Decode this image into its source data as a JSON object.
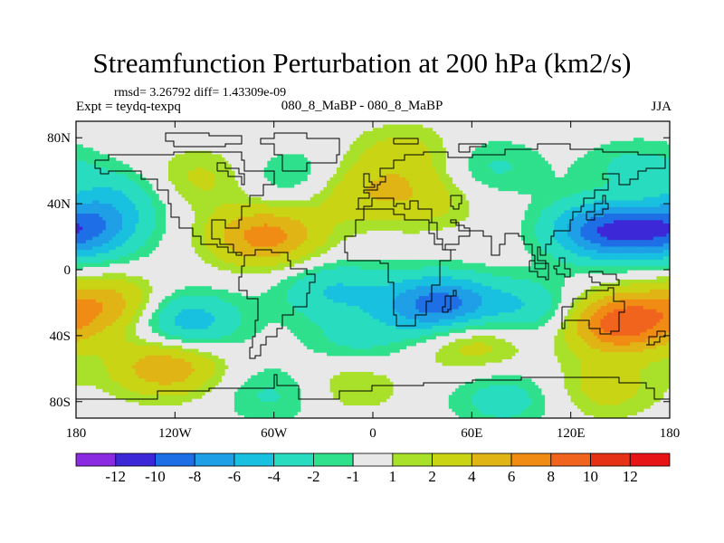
{
  "header": {
    "title": "Streamfunction Perturbation at 200 hPa (km2/s)",
    "stats": "rmsd= 3.26792 diff= 1.43309e-09",
    "left_subtitle": "Expt = teydq-texpq",
    "center_subtitle": "080_8_MaBP - 080_8_MaBP",
    "right_subtitle": "JJA"
  },
  "chart_data": {
    "type": "heatmap",
    "title": "Streamfunction Perturbation at 200 hPa (km2/s)",
    "units": "km2/s",
    "xlim": [
      -180,
      180
    ],
    "ylim": [
      -90,
      90
    ],
    "x_ticks": [
      {
        "value": -180,
        "label": "180"
      },
      {
        "value": -120,
        "label": "120W"
      },
      {
        "value": -60,
        "label": "60W"
      },
      {
        "value": 0,
        "label": "0"
      },
      {
        "value": 60,
        "label": "60E"
      },
      {
        "value": 120,
        "label": "120E"
      },
      {
        "value": 180,
        "label": "180"
      }
    ],
    "y_ticks": [
      {
        "value": 80,
        "label": "80N"
      },
      {
        "value": 40,
        "label": "40N"
      },
      {
        "value": 0,
        "label": "0"
      },
      {
        "value": -40,
        "label": "40S"
      },
      {
        "value": -80,
        "label": "80S"
      }
    ],
    "colorbar": {
      "levels": [
        -12,
        -10,
        -8,
        -6,
        -4,
        -2,
        -1,
        1,
        2,
        4,
        6,
        8,
        10,
        12
      ],
      "level_labels": [
        "-12",
        "-10",
        "-8",
        "-6",
        "-4",
        "-2",
        "-1",
        "1",
        "2",
        "4",
        "6",
        "8",
        "10",
        "12"
      ],
      "colors": [
        "#8a2be2",
        "#3c28d6",
        "#1e6fe6",
        "#1e9fe6",
        "#19c0df",
        "#28dcc0",
        "#2fe08c",
        "#e8e8e8",
        "#a8e02a",
        "#c8d414",
        "#e0b414",
        "#f08c14",
        "#f0641e",
        "#e63214",
        "#e61414"
      ]
    },
    "features": [
      {
        "lon": 150,
        "lat": -32,
        "value": 9.5
      },
      {
        "lon": 170,
        "lat": 42,
        "value": 3.5
      },
      {
        "lon": 20,
        "lat": 70,
        "value": 2.8
      },
      {
        "lon": -125,
        "lat": -58,
        "value": 6.0
      },
      {
        "lon": -160,
        "lat": -22,
        "value": 5.5
      },
      {
        "lon": -65,
        "lat": 20,
        "value": 7.0
      },
      {
        "lon": -15,
        "lat": 48,
        "value": 3.5
      },
      {
        "lon": 30,
        "lat": 43,
        "value": 3.0
      },
      {
        "lon": 60,
        "lat": -42,
        "value": 4.0
      },
      {
        "lon": 140,
        "lat": -72,
        "value": 2.8
      },
      {
        "lon": -15,
        "lat": -68,
        "value": 2.5
      },
      {
        "lon": -105,
        "lat": 55,
        "value": 2.5
      },
      {
        "lon": 140,
        "lat": 24,
        "value": -9.0
      },
      {
        "lon": 178,
        "lat": 28,
        "value": -6.0
      },
      {
        "lon": 40,
        "lat": -22,
        "value": -9.5
      },
      {
        "lon": 95,
        "lat": -24,
        "value": -4.0
      },
      {
        "lon": -25,
        "lat": -12,
        "value": -4.0
      },
      {
        "lon": -115,
        "lat": -32,
        "value": -6.0
      },
      {
        "lon": -160,
        "lat": 44,
        "value": -4.0
      },
      {
        "lon": -170,
        "lat": 20,
        "value": -3.0
      },
      {
        "lon": -45,
        "lat": 55,
        "value": -3.0
      },
      {
        "lon": 160,
        "lat": 60,
        "value": -3.0
      },
      {
        "lon": 70,
        "lat": 62,
        "value": -2.5
      },
      {
        "lon": 80,
        "lat": -78,
        "value": -3.0
      },
      {
        "lon": -60,
        "lat": -75,
        "value": -2.5
      },
      {
        "lon": -10,
        "lat": -45,
        "value": -2.5
      }
    ]
  }
}
